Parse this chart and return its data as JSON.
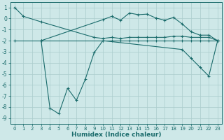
{
  "xlabel": "Humidex (Indice chaleur)",
  "xlim": [
    -0.5,
    23.5
  ],
  "ylim": [
    -9.5,
    1.5
  ],
  "yticks": [
    1,
    0,
    -1,
    -2,
    -3,
    -4,
    -5,
    -6,
    -7,
    -8,
    -9
  ],
  "xticks": [
    0,
    1,
    2,
    3,
    4,
    5,
    6,
    7,
    8,
    9,
    10,
    11,
    12,
    13,
    14,
    15,
    16,
    17,
    18,
    19,
    20,
    21,
    22,
    23
  ],
  "bg_color": "#cee8e8",
  "grid_color": "#aacccc",
  "line_color": "#1a6b6b",
  "line1_x": [
    0,
    1,
    3,
    9,
    10,
    11,
    12,
    13,
    14,
    15,
    16,
    17,
    18,
    19,
    20,
    21,
    22,
    23
  ],
  "line1_y": [
    1.0,
    0.2,
    -0.3,
    -1.7,
    -1.8,
    -1.7,
    -1.8,
    -1.7,
    -1.7,
    -1.7,
    -1.7,
    -1.7,
    -1.6,
    -1.6,
    -1.7,
    -1.7,
    -1.7,
    -2.0
  ],
  "line2_x": [
    0,
    3,
    10,
    11,
    12,
    13,
    14,
    15,
    16,
    17,
    18,
    19,
    20,
    21,
    22,
    23
  ],
  "line2_y": [
    -2.0,
    -2.0,
    -2.0,
    -2.0,
    -2.0,
    -2.0,
    -2.0,
    -2.0,
    -2.0,
    -2.0,
    -2.0,
    -2.0,
    -2.0,
    -2.0,
    -2.0,
    -2.0
  ],
  "line3_x": [
    3,
    10,
    11,
    12,
    13,
    14,
    15,
    16,
    17,
    18,
    19,
    20,
    21,
    22,
    23
  ],
  "line3_y": [
    -2.0,
    -0.1,
    0.2,
    -0.15,
    0.5,
    0.35,
    0.4,
    0.05,
    -0.15,
    0.1,
    -0.5,
    -1.2,
    -1.5,
    -1.5,
    -2.0
  ],
  "line4_x": [
    3,
    4,
    5,
    6,
    7,
    8,
    9,
    10,
    19,
    20,
    21,
    22,
    23
  ],
  "line4_y": [
    -2.0,
    -8.1,
    -8.6,
    -6.3,
    -7.4,
    -5.5,
    -3.1,
    -2.0,
    -2.8,
    -3.6,
    -4.4,
    -5.2,
    -2.0
  ]
}
